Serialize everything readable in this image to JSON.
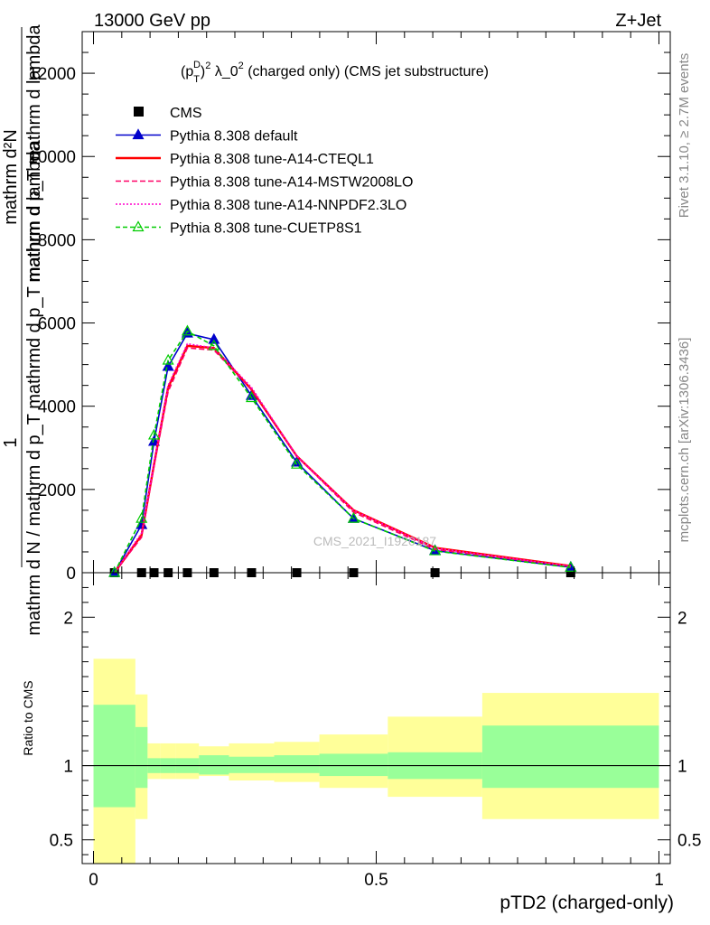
{
  "header": {
    "energy": "13000 GeV pp",
    "process": "Z+Jet"
  },
  "side_labels": {
    "rivet": "Rivet 3.1.10, ≥ 2.7M events",
    "mcplots": "mcplots.cern.ch [arXiv:1306.3436]"
  },
  "watermark": "CMS_2021_I1920187",
  "chart_data": [
    {
      "type": "line",
      "title_prefix": "(p",
      "title_sup": "D",
      "title_sub": "T",
      "title_mid": ")",
      "title_sup2": "2",
      "title_rest": " λ_0",
      "title_sup3": "2",
      "title_tail": " (charged only) (CMS jet substructure)",
      "ylabel_top": "mathrm d²N",
      "ylabel_top2": "mathrm d p_T mathrm d lambda",
      "ylabel_frac_top": "1",
      "ylabel_bottom": "mathrm d N / mathrm d p_T mathrmd d p_T mathrm d lambda",
      "xlim": [
        -0.02,
        1.02
      ],
      "ylim": [
        0,
        13000
      ],
      "y_ticks": [
        0,
        2000,
        4000,
        6000,
        8000,
        10000,
        12000
      ],
      "y_tick_labels": [
        "0",
        "2000",
        "4000",
        "6000",
        "8000",
        "10000",
        "12000"
      ],
      "legend_position": "top-left",
      "bin_edges": [
        0,
        0.074,
        0.0955,
        0.1185,
        0.1455,
        0.1865,
        0.2395,
        0.3195,
        0.3995,
        0.5205,
        0.6875,
        1.0
      ],
      "x": [
        0.037,
        0.085,
        0.107,
        0.132,
        0.166,
        0.213,
        0.2795,
        0.3595,
        0.46,
        0.604,
        0.844
      ],
      "series": [
        {
          "name": "CMS",
          "color": "#000000",
          "style": "marker-square",
          "values": [
            0,
            0,
            0,
            0,
            0,
            0,
            0,
            0,
            0,
            0,
            0
          ]
        },
        {
          "name": "Pythia 8.308 default",
          "color": "#0000cc",
          "style": "solid-triangle",
          "values": [
            0,
            1150,
            3150,
            4950,
            5750,
            5600,
            4250,
            2650,
            1300,
            530,
            130
          ]
        },
        {
          "name": "Pythia 8.308 tune-A14-CTEQL1",
          "color": "#ff0000",
          "style": "solid",
          "values": [
            0,
            900,
            2600,
            4450,
            5450,
            5400,
            4400,
            2800,
            1500,
            600,
            160
          ]
        },
        {
          "name": "Pythia 8.308 tune-A14-MSTW2008LO",
          "color": "#ff0066",
          "style": "dashed",
          "values": [
            0,
            850,
            2550,
            4350,
            5400,
            5350,
            4400,
            2800,
            1450,
            560,
            150
          ]
        },
        {
          "name": "Pythia 8.308 tune-A14-NNPDF2.3LO",
          "color": "#ff00cc",
          "style": "dotted",
          "values": [
            0,
            950,
            2650,
            4500,
            5500,
            5400,
            4450,
            2800,
            1500,
            590,
            155
          ]
        },
        {
          "name": "Pythia 8.308 tune-CUETP8S1",
          "color": "#00cc00",
          "style": "dashed-open-triangle",
          "values": [
            0,
            1300,
            3300,
            5100,
            5800,
            5450,
            4200,
            2600,
            1300,
            520,
            125
          ]
        }
      ]
    },
    {
      "type": "area",
      "ylabel": "Ratio to CMS",
      "xlabel": "pTD2 (charged-only)",
      "xlim": [
        -0.02,
        1.02
      ],
      "ylim": [
        0.34,
        2.3
      ],
      "y_ticks": [
        0.5,
        1,
        2
      ],
      "y_tick_labels": [
        "0.5",
        "1",
        "2"
      ],
      "x_ticks": [
        0,
        0.5,
        1
      ],
      "x_tick_labels": [
        "0",
        "0.5",
        "1"
      ],
      "reference_line": 1,
      "bin_edges": [
        0,
        0.074,
        0.0955,
        0.1185,
        0.1455,
        0.1865,
        0.2395,
        0.3195,
        0.3995,
        0.5205,
        0.6875,
        1.0
      ],
      "inner_band": {
        "color": "#99ff99",
        "low": [
          0.72,
          0.85,
          0.95,
          0.95,
          0.95,
          0.94,
          0.95,
          0.95,
          0.93,
          0.91,
          0.85
        ],
        "high": [
          1.41,
          1.26,
          1.05,
          1.05,
          1.05,
          1.07,
          1.06,
          1.07,
          1.08,
          1.09,
          1.27
        ]
      },
      "outer_band": {
        "color": "#ffff99",
        "low": [
          0.34,
          0.64,
          0.91,
          0.91,
          0.91,
          0.93,
          0.9,
          0.89,
          0.85,
          0.79,
          0.64
        ],
        "high": [
          1.72,
          1.48,
          1.15,
          1.15,
          1.15,
          1.13,
          1.15,
          1.16,
          1.21,
          1.33,
          1.49
        ]
      }
    }
  ]
}
